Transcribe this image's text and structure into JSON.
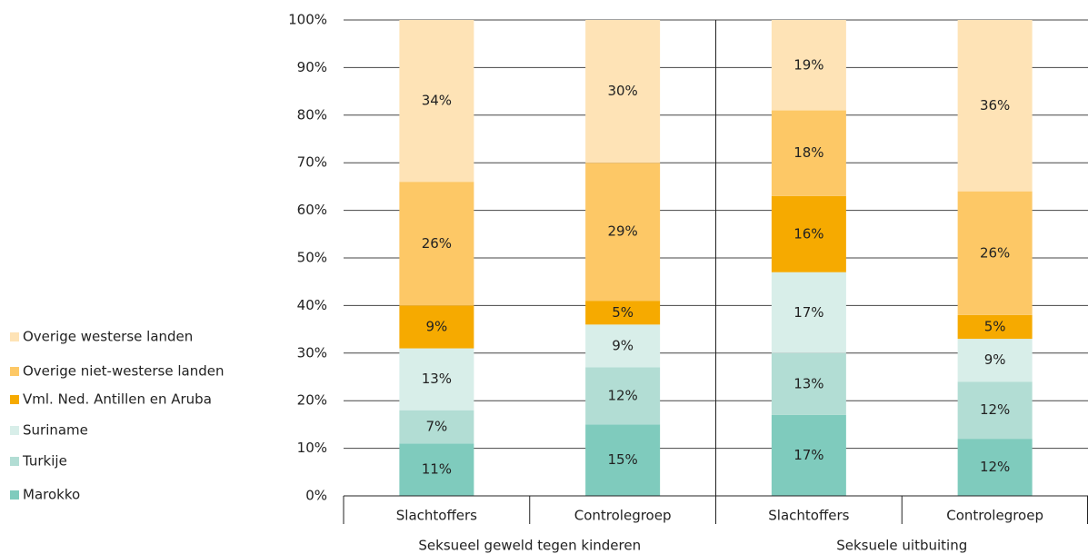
{
  "chart_data": {
    "type": "stacked_bar",
    "categories": [
      "Slachtoffers",
      "Controlegroep",
      "Slachtoffers",
      "Controlegroep"
    ],
    "groups": [
      "Seksueel geweld tegen kinderen",
      "Seksuele uitbuiting"
    ],
    "series": [
      {
        "name": "Marokko",
        "color": "#7fcbbd",
        "values": [
          11,
          15,
          17,
          12
        ],
        "value_labels": [
          "11%",
          "15%",
          "17%",
          "12%"
        ]
      },
      {
        "name": "Turkije",
        "color": "#b2ddd4",
        "values": [
          7,
          12,
          13,
          12
        ],
        "value_labels": [
          "7%",
          "12%",
          "13%",
          "12%"
        ]
      },
      {
        "name": "Suriname",
        "color": "#d8eee9",
        "values": [
          13,
          9,
          17,
          9
        ],
        "value_labels": [
          "13%",
          "9%",
          "17%",
          "9%"
        ]
      },
      {
        "name": "Vml. Ned. Antillen en Aruba",
        "color": "#f6aa00",
        "values": [
          9,
          5,
          16,
          5
        ],
        "value_labels": [
          "9%",
          "5%",
          "16%",
          "5%"
        ]
      },
      {
        "name": "Overige niet-westerse landen",
        "color": "#fdc866",
        "values": [
          26,
          29,
          18,
          26
        ],
        "value_labels": [
          "26%",
          "29%",
          "18%",
          "26%"
        ]
      },
      {
        "name": "Overige westerse landen",
        "color": "#fee3b6",
        "values": [
          34,
          30,
          19,
          36
        ],
        "value_labels": [
          "34%",
          "30%",
          "19%",
          "36%"
        ]
      }
    ],
    "ylim": [
      0,
      100
    ],
    "yticks": [
      {
        "value": 0,
        "label": "0%"
      },
      {
        "value": 10,
        "label": "10%"
      },
      {
        "value": 20,
        "label": "20%"
      },
      {
        "value": 30,
        "label": "30%"
      },
      {
        "value": 40,
        "label": "40%"
      },
      {
        "value": 50,
        "label": "50%"
      },
      {
        "value": 60,
        "label": "60%"
      },
      {
        "value": 70,
        "label": "70%"
      },
      {
        "value": 80,
        "label": "80%"
      },
      {
        "value": 90,
        "label": "90%"
      },
      {
        "value": 100,
        "label": "100%"
      }
    ],
    "grid": true,
    "legend": "left"
  }
}
